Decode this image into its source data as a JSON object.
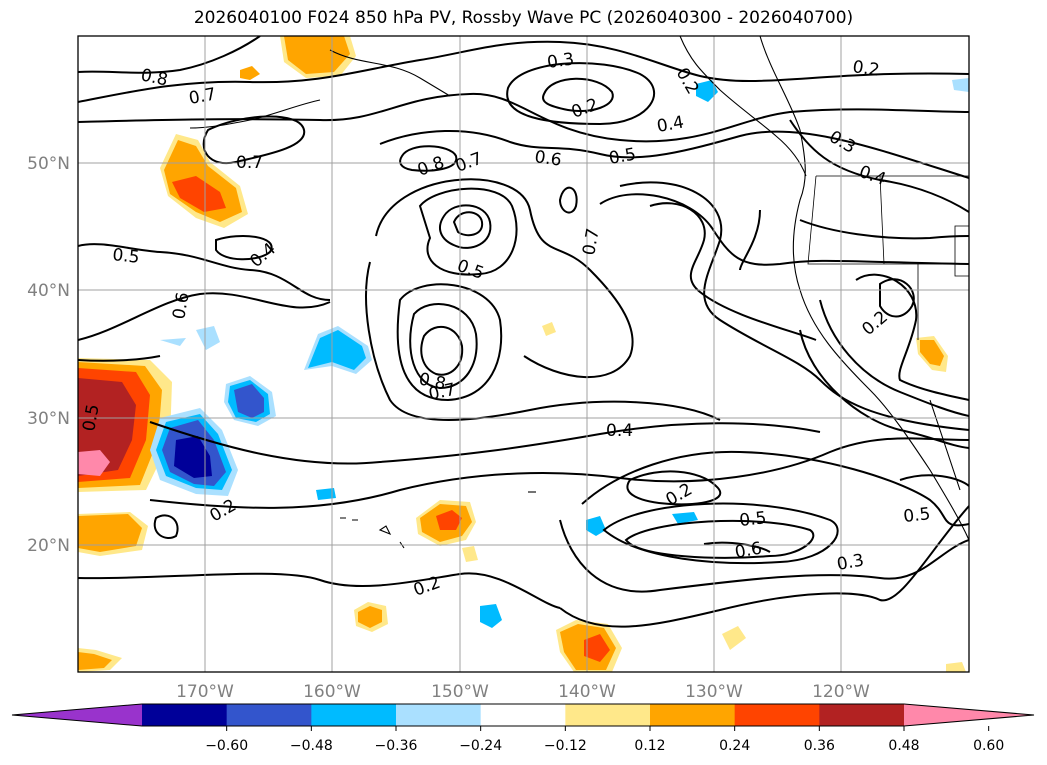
{
  "chart_data": {
    "type": "contour-map",
    "title": "2026040100 F024 850 hPa PV, Rossby Wave PC (2026040300 - 2026040700)",
    "lon_range": [
      -180,
      -110
    ],
    "lat_range": [
      10,
      60
    ],
    "lon_ticks": [
      "170°W",
      "160°W",
      "150°W",
      "140°W",
      "130°W",
      "120°W"
    ],
    "lat_ticks": [
      "20°N",
      "30°N",
      "40°N",
      "50°N"
    ],
    "contour_labels": [
      "0.8",
      "0.7",
      "0.7",
      "0.3",
      "0.2",
      "0.2",
      "0.2",
      "0.4",
      "0.3",
      "0.4",
      "0.6",
      "0.5",
      "0.8",
      "0.7",
      "0.5",
      "0.4",
      "0.7",
      "0.6",
      "0.5",
      "0.2",
      "0.8",
      "0.7",
      "0.4",
      "0.2",
      "0.5",
      "0.6",
      "0.3",
      "0.5",
      "0.2",
      "0.2",
      "0.5"
    ],
    "colorbar": {
      "ticks": [
        "−0.60",
        "−0.48",
        "−0.36",
        "−0.24",
        "−0.12",
        "0.12",
        "0.24",
        "0.36",
        "0.48",
        "0.60"
      ],
      "colors": [
        "#9933cc",
        "#000099",
        "#3355cc",
        "#00bbff",
        "#aae0ff",
        "#ffffff",
        "#ffe88a",
        "#ffa500",
        "#ff4400",
        "#b22222",
        "#ff88aa"
      ],
      "extend": "both"
    }
  }
}
